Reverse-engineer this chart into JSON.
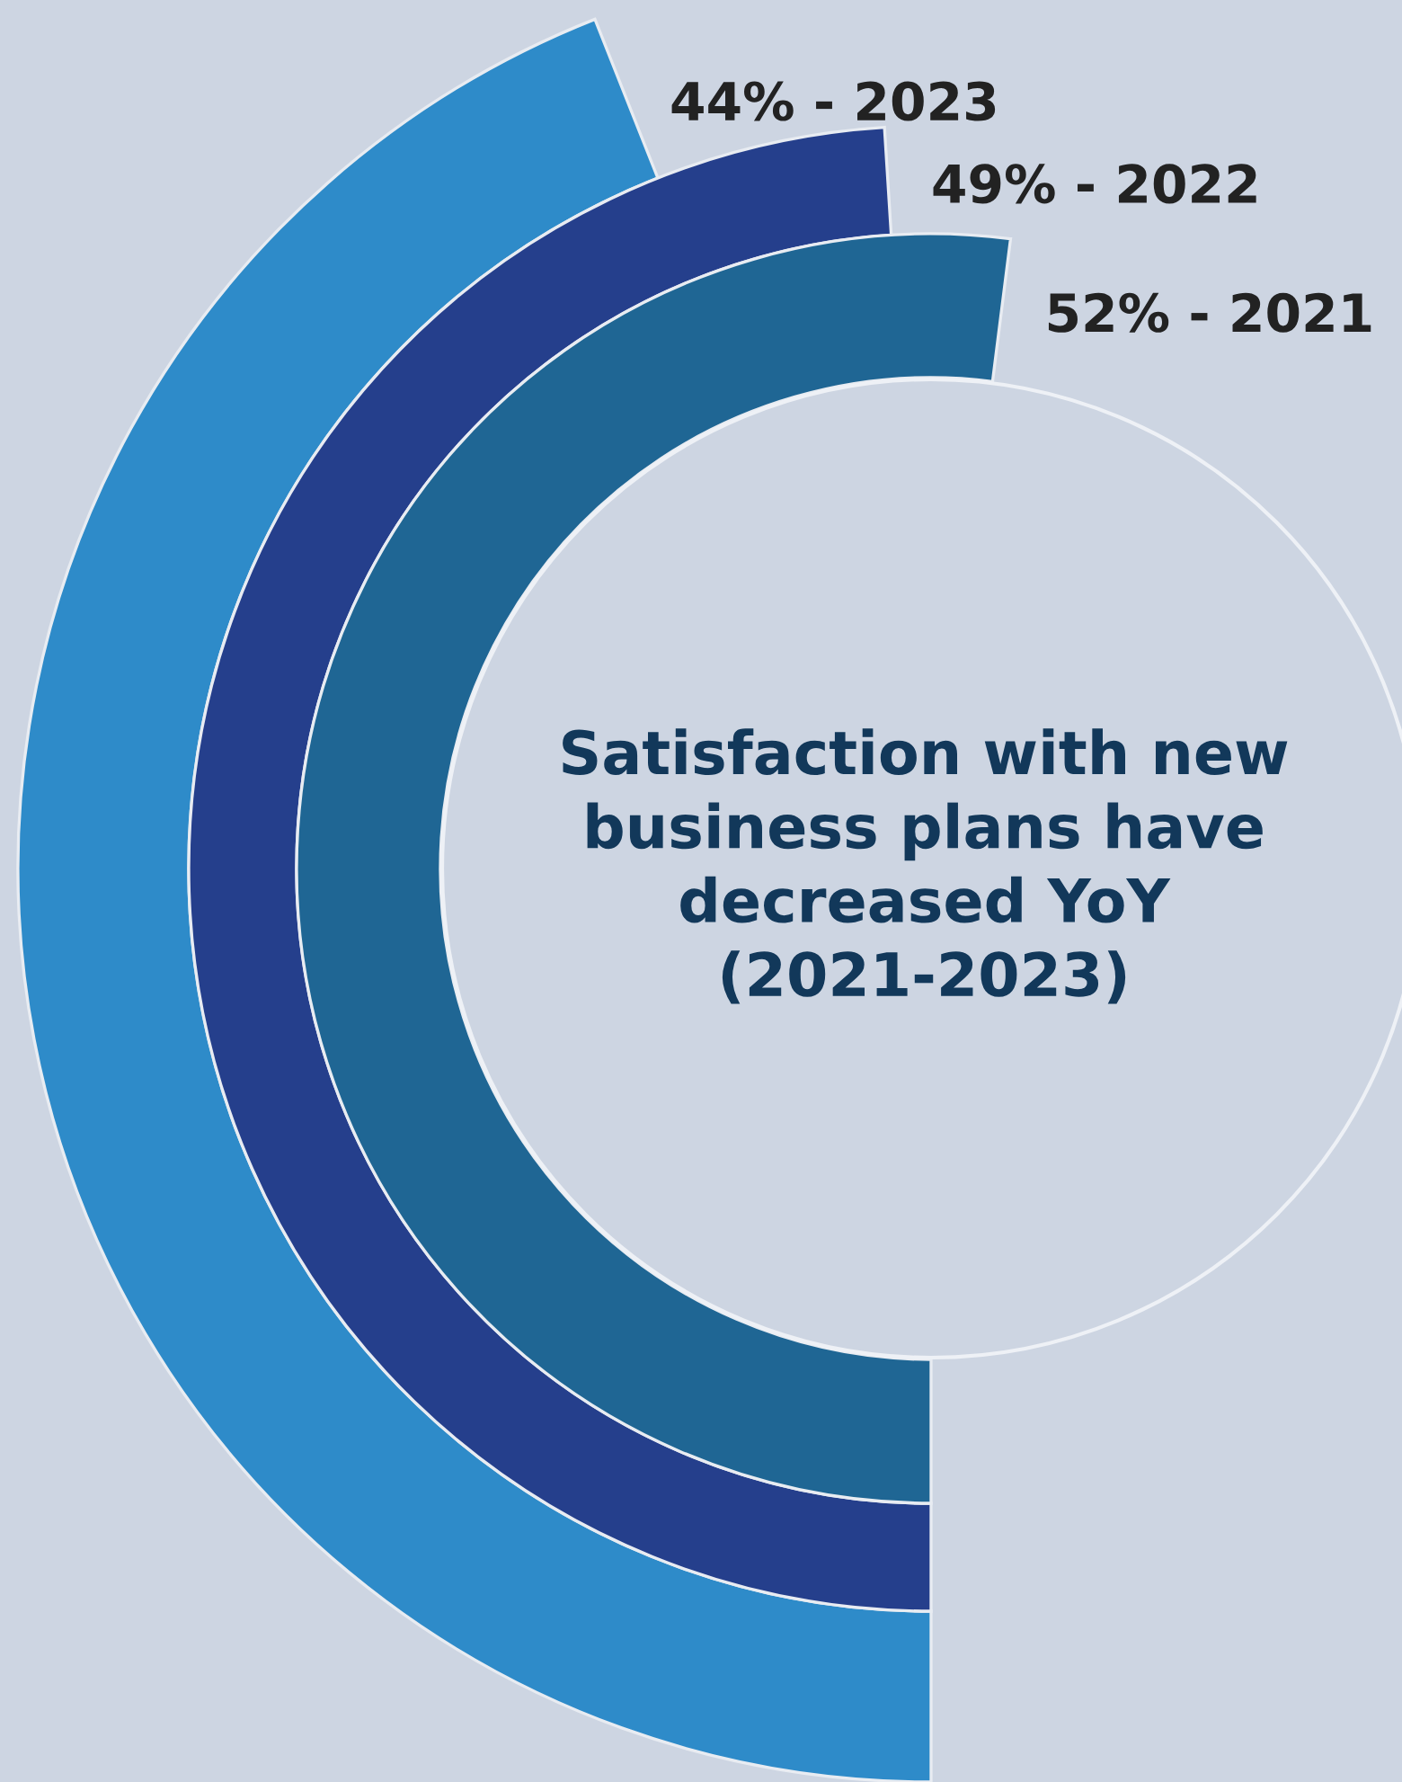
{
  "chart_data": {
    "type": "other",
    "title": "Satisfaction with new\nbusiness plans have\ndecreased YoY\n(2021-2023)",
    "categories": [
      null,
      null,
      null
    ],
    "values": [
      44,
      49,
      52
    ],
    "colors": [
      "#2e8bc9",
      "#253f8c",
      "#1f6694"
    ],
    "value_labels": [
      "44% - 2023",
      "49% - 2022",
      "52% - 2021"
    ]
  }
}
